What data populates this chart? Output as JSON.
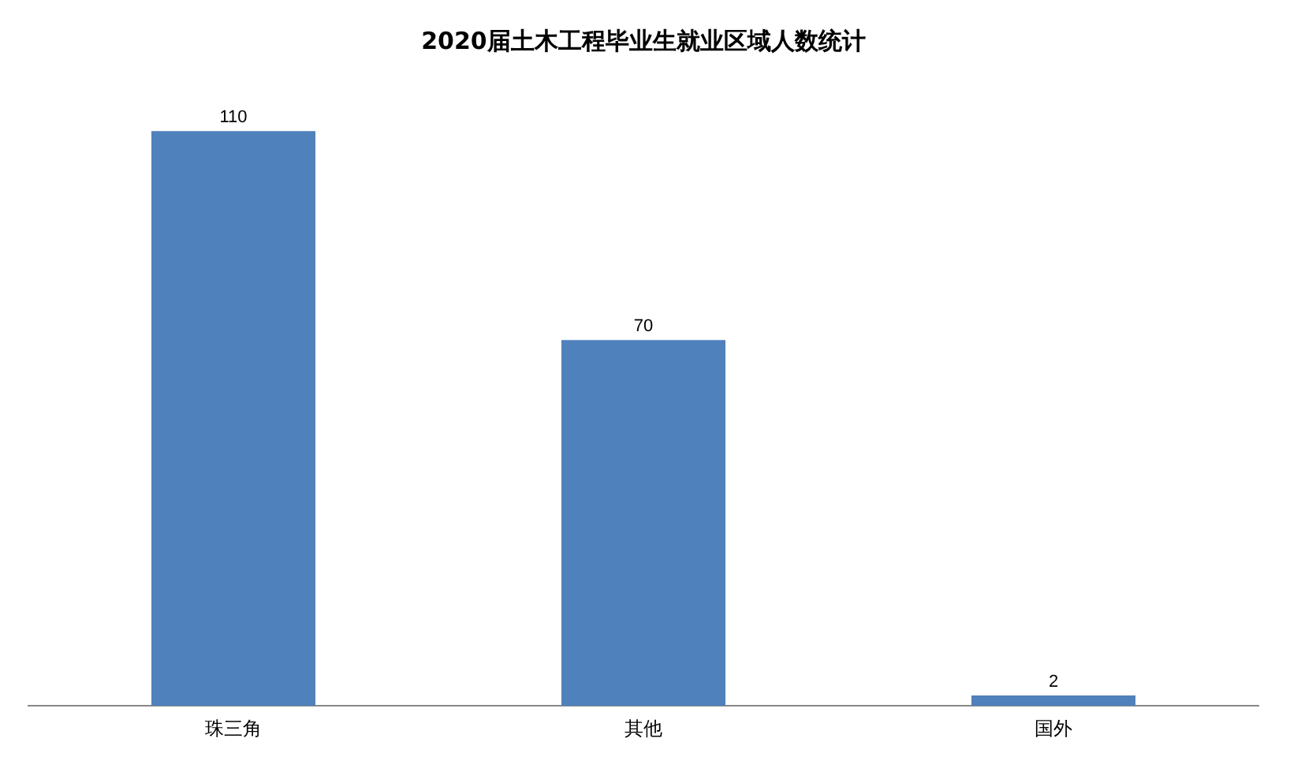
{
  "chart_data": {
    "type": "bar",
    "title": "2020届土木工程毕业生就业区域人数统计",
    "categories": [
      "珠三角",
      "其他",
      "国外"
    ],
    "values": [
      110,
      70,
      2
    ],
    "color": "#4f81bd",
    "data_labels": true,
    "grid": false,
    "legend": false,
    "tick_labels": "x"
  }
}
